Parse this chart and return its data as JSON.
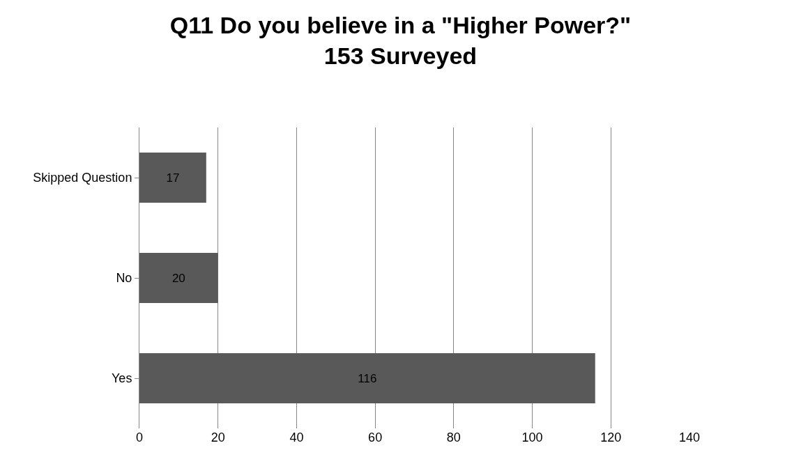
{
  "chart_data": {
    "type": "bar",
    "orientation": "horizontal",
    "title": "Q11 Do you believe in a \"Higher Power?\"\n153 Surveyed",
    "categories": [
      "Skipped Question",
      "No",
      "Yes"
    ],
    "values": [
      17,
      20,
      116
    ],
    "color": "#595959",
    "xlim": [
      0,
      140
    ],
    "xticks": [
      0,
      20,
      40,
      60,
      80,
      100,
      120,
      140
    ],
    "grid": "x",
    "data_labels": true
  }
}
